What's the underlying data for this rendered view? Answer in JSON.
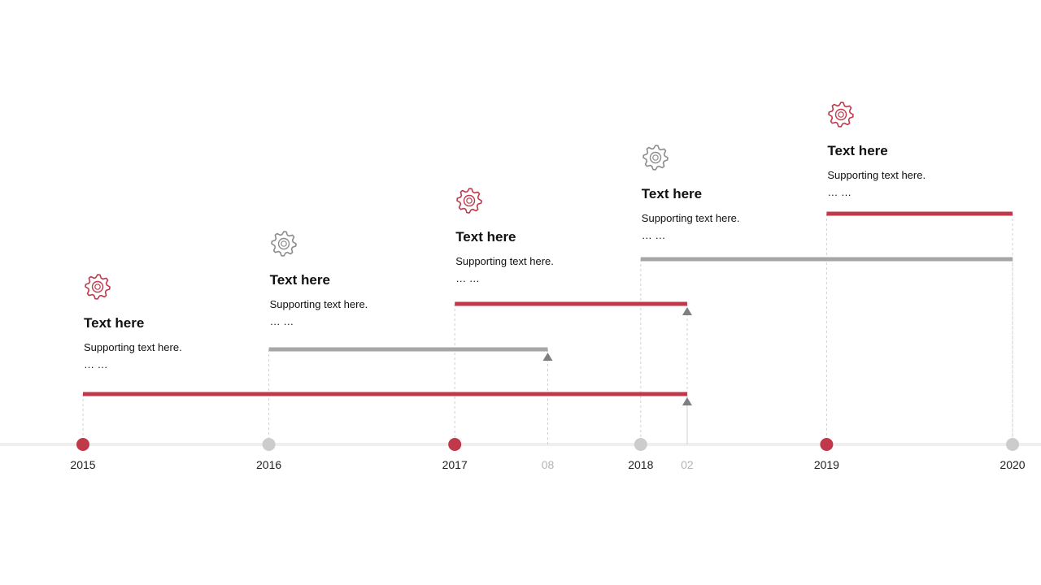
{
  "colors": {
    "accent": "#c0394b",
    "gray": "#a6a6a6",
    "marker_gray": "#cccccc",
    "axis": "#efefef",
    "guide": "#d0d0d0",
    "arrow": "#7f7f7f"
  },
  "axis": {
    "years": [
      {
        "label": "2015",
        "value": 2015,
        "color": "accent"
      },
      {
        "label": "2016",
        "value": 2016,
        "color": "gray"
      },
      {
        "label": "2017",
        "value": 2017,
        "color": "accent"
      },
      {
        "label": "2018",
        "value": 2018,
        "color": "gray"
      },
      {
        "label": "2019",
        "value": 2019,
        "color": "accent"
      },
      {
        "label": "2020",
        "value": 2020,
        "color": "gray"
      }
    ],
    "months": [
      {
        "label": "08",
        "value": 2017.5
      },
      {
        "label": "02",
        "value": 2018.25
      }
    ]
  },
  "bars": [
    {
      "start": 2015,
      "end": 2018.25,
      "color": "accent",
      "arrow": true
    },
    {
      "start": 2016,
      "end": 2017.5,
      "color": "gray",
      "arrow": true
    },
    {
      "start": 2017,
      "end": 2018.25,
      "color": "accent",
      "arrow": true
    },
    {
      "start": 2018,
      "end": 2020,
      "color": "gray",
      "arrow": false
    },
    {
      "start": 2019,
      "end": 2020,
      "color": "accent",
      "arrow": false
    }
  ],
  "cards": [
    {
      "icon": "gear-icon",
      "color": "accent",
      "title": "Text here",
      "support": "Supporting text here.",
      "dots": "… …"
    },
    {
      "icon": "gear-icon",
      "color": "gray",
      "title": "Text here",
      "support": "Supporting text here.",
      "dots": "… …"
    },
    {
      "icon": "gear-icon",
      "color": "accent",
      "title": "Text here",
      "support": "Supporting text here.",
      "dots": "… …"
    },
    {
      "icon": "gear-icon",
      "color": "gray",
      "title": "Text here",
      "support": "Supporting text here.",
      "dots": "… …"
    },
    {
      "icon": "gear-icon",
      "color": "accent",
      "title": "Text here",
      "support": "Supporting text here.",
      "dots": "… …"
    }
  ]
}
